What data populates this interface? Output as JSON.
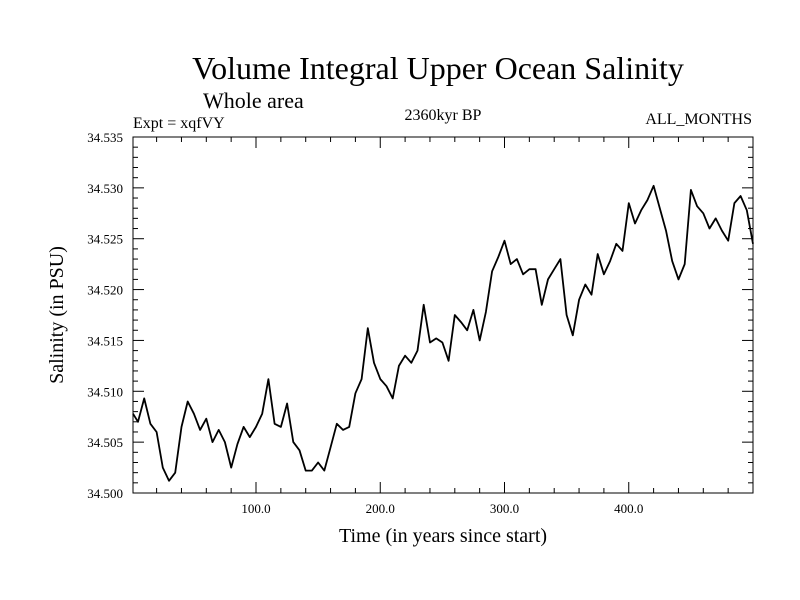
{
  "chart_data": {
    "type": "line",
    "title": "Volume Integral Upper Ocean Salinity",
    "subtitle": "Whole area",
    "experiment_label": "Expt = xqfVY",
    "period_label": "2360kyr BP",
    "months_label": "ALL_MONTHS",
    "xlabel": "Time (in years since start)",
    "ylabel": "Salinity (in PSU)",
    "xlim": [
      1,
      500
    ],
    "ylim": [
      34.5,
      34.535
    ],
    "x_ticks": [
      100,
      200,
      300,
      400
    ],
    "x_tick_labels": [
      "100.0",
      "200.0",
      "300.0",
      "400.0"
    ],
    "y_ticks": [
      34.5,
      34.505,
      34.51,
      34.515,
      34.52,
      34.525,
      34.53,
      34.535
    ],
    "y_tick_labels": [
      "34.500",
      "34.505",
      "34.510",
      "34.515",
      "34.520",
      "34.525",
      "34.530",
      "34.535"
    ],
    "grid": false,
    "series": [
      {
        "name": "Salinity",
        "color": "#000000",
        "x": [
          1,
          5,
          10,
          15,
          20,
          25,
          30,
          35,
          40,
          45,
          50,
          55,
          60,
          65,
          70,
          75,
          80,
          85,
          90,
          95,
          100,
          105,
          110,
          115,
          120,
          125,
          130,
          135,
          140,
          145,
          150,
          155,
          160,
          165,
          170,
          175,
          180,
          185,
          190,
          195,
          200,
          205,
          210,
          215,
          220,
          225,
          230,
          235,
          240,
          245,
          250,
          255,
          260,
          265,
          270,
          275,
          280,
          285,
          290,
          295,
          300,
          305,
          310,
          315,
          320,
          325,
          330,
          335,
          340,
          345,
          350,
          355,
          360,
          365,
          370,
          375,
          380,
          385,
          390,
          395,
          400,
          405,
          410,
          415,
          420,
          425,
          430,
          435,
          440,
          445,
          450,
          455,
          460,
          465,
          470,
          475,
          480,
          485,
          490,
          495,
          500
        ],
        "values": [
          34.5078,
          34.507,
          34.5093,
          34.5068,
          34.506,
          34.5025,
          34.5012,
          34.502,
          34.5065,
          34.509,
          34.5078,
          34.5062,
          34.5073,
          34.505,
          34.5062,
          34.505,
          34.5025,
          34.5048,
          34.5065,
          34.5055,
          34.5065,
          34.5078,
          34.5112,
          34.5068,
          34.5065,
          34.5088,
          34.505,
          34.5042,
          34.5022,
          34.5022,
          34.503,
          34.5022,
          34.5045,
          34.5068,
          34.5062,
          34.5065,
          34.5098,
          34.5112,
          34.5162,
          34.5128,
          34.5112,
          34.5105,
          34.5093,
          34.5125,
          34.5135,
          34.5128,
          34.514,
          34.5185,
          34.5148,
          34.5152,
          34.5148,
          34.513,
          34.5175,
          34.5168,
          34.516,
          34.518,
          34.515,
          34.5178,
          34.5218,
          34.5232,
          34.5248,
          34.5225,
          34.523,
          34.5215,
          34.522,
          34.522,
          34.5185,
          34.521,
          34.522,
          34.523,
          34.5175,
          34.5155,
          34.519,
          34.5205,
          34.5195,
          34.5235,
          34.5215,
          34.5228,
          34.5245,
          34.5238,
          34.5285,
          34.5265,
          34.5278,
          34.5288,
          34.5302,
          34.528,
          34.5258,
          34.5228,
          34.521,
          34.5225,
          34.5298,
          34.5282,
          34.5275,
          34.526,
          34.527,
          34.5258,
          34.5248,
          34.5285,
          34.5292,
          34.5278,
          34.5245
        ]
      }
    ]
  }
}
